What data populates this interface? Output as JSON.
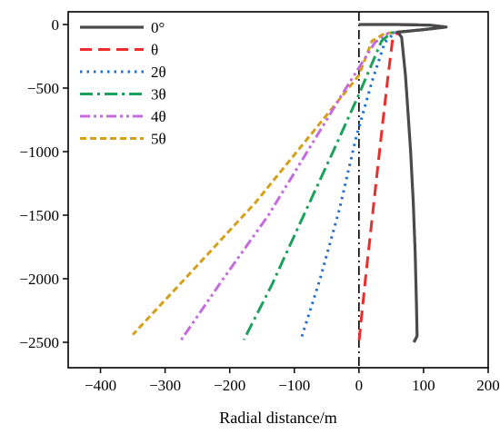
{
  "chart_data": {
    "type": "line",
    "title": "",
    "xlabel": "Radial distance/m",
    "ylabel": "",
    "xlim": [
      -450,
      200
    ],
    "ylim": [
      -2700,
      100
    ],
    "xticks": [
      -400,
      -300,
      -200,
      -100,
      0,
      100,
      200
    ],
    "yticks": [
      0,
      -500,
      -1000,
      -1500,
      -2000,
      -2500
    ],
    "legend_position": "top-left",
    "grid": false,
    "reference_line": {
      "x": 0,
      "style": "dash-dot",
      "color": "#000000"
    },
    "series": [
      {
        "name": "0°",
        "color": "#4a4a4a",
        "dash": "solid",
        "points": [
          [
            0,
            0
          ],
          [
            60,
            0
          ],
          [
            110,
            -5
          ],
          [
            135,
            -20
          ],
          [
            100,
            -40
          ],
          [
            60,
            -60
          ],
          [
            66,
            -100
          ],
          [
            68,
            -200
          ],
          [
            72,
            -400
          ],
          [
            76,
            -700
          ],
          [
            80,
            -1000
          ],
          [
            84,
            -1400
          ],
          [
            87,
            -1800
          ],
          [
            89,
            -2200
          ],
          [
            90,
            -2450
          ],
          [
            85,
            -2500
          ]
        ]
      },
      {
        "name": "θ",
        "color": "#ee2c2c",
        "dash": "large-dash",
        "points": [
          [
            0,
            0
          ],
          [
            60,
            0
          ],
          [
            110,
            -5
          ],
          [
            135,
            -20
          ],
          [
            100,
            -40
          ],
          [
            60,
            -60
          ],
          [
            52,
            -120
          ],
          [
            44,
            -450
          ],
          [
            34,
            -900
          ],
          [
            22,
            -1450
          ],
          [
            10,
            -2000
          ],
          [
            0,
            -2500
          ]
        ]
      },
      {
        "name": "2θ",
        "color": "#1f6fd1",
        "dash": "dot",
        "points": [
          [
            0,
            0
          ],
          [
            60,
            0
          ],
          [
            110,
            -5
          ],
          [
            135,
            -20
          ],
          [
            100,
            -40
          ],
          [
            55,
            -65
          ],
          [
            40,
            -140
          ],
          [
            20,
            -450
          ],
          [
            -5,
            -900
          ],
          [
            -30,
            -1450
          ],
          [
            -60,
            -2000
          ],
          [
            -90,
            -2480
          ]
        ]
      },
      {
        "name": "3θ",
        "color": "#1aa15a",
        "dash": "dash-dot",
        "points": [
          [
            0,
            0
          ],
          [
            60,
            0
          ],
          [
            110,
            -5
          ],
          [
            135,
            -20
          ],
          [
            100,
            -40
          ],
          [
            50,
            -65
          ],
          [
            35,
            -130
          ],
          [
            0,
            -550
          ],
          [
            -40,
            -1000
          ],
          [
            -90,
            -1550
          ],
          [
            -135,
            -2050
          ],
          [
            -178,
            -2480
          ]
        ]
      },
      {
        "name": "4θ",
        "color": "#c46be0",
        "dash": "dash-dot-dot",
        "points": [
          [
            0,
            0
          ],
          [
            60,
            0
          ],
          [
            110,
            -5
          ],
          [
            135,
            -20
          ],
          [
            100,
            -40
          ],
          [
            45,
            -70
          ],
          [
            25,
            -140
          ],
          [
            -20,
            -500
          ],
          [
            -80,
            -1000
          ],
          [
            -140,
            -1500
          ],
          [
            -210,
            -2000
          ],
          [
            -275,
            -2480
          ]
        ]
      },
      {
        "name": "5θ",
        "color": "#d4a017",
        "dash": "short-dash",
        "points": [
          [
            0,
            0
          ],
          [
            60,
            0
          ],
          [
            110,
            -5
          ],
          [
            135,
            -20
          ],
          [
            100,
            -40
          ],
          [
            40,
            -70
          ],
          [
            20,
            -130
          ],
          [
            0,
            -400
          ],
          [
            -80,
            -900
          ],
          [
            -160,
            -1400
          ],
          [
            -260,
            -1950
          ],
          [
            -350,
            -2440
          ]
        ]
      }
    ]
  }
}
